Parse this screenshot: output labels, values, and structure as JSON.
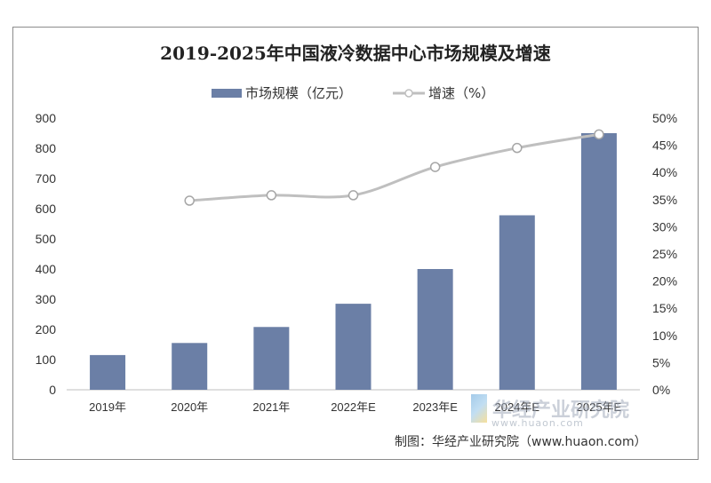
{
  "chart_data": {
    "type": "bar",
    "title": "2019-2025年中国液冷数据中心市场规模及增速",
    "categories": [
      "2019年",
      "2020年",
      "2021年",
      "2022年E",
      "2023年E",
      "2024年E",
      "2025年E"
    ],
    "series": [
      {
        "name": "市场规模（亿元）",
        "type": "bar",
        "axis": "left",
        "values": [
          115,
          155,
          208,
          285,
          400,
          578,
          850
        ]
      },
      {
        "name": "增速（%）",
        "type": "line",
        "axis": "right",
        "values": [
          null,
          34.8,
          35.8,
          35.8,
          41.0,
          44.5,
          47.0
        ]
      }
    ],
    "y_left": {
      "ylim": [
        0,
        900
      ],
      "ticks": [
        "0",
        "100",
        "200",
        "300",
        "400",
        "500",
        "600",
        "700",
        "800",
        "900"
      ]
    },
    "y_right": {
      "ylim": [
        0,
        50
      ],
      "ticks": [
        "0%",
        "5%",
        "10%",
        "15%",
        "20%",
        "25%",
        "30%",
        "35%",
        "40%",
        "45%",
        "50%"
      ]
    },
    "grid": false,
    "legend": "top-center",
    "colors": {
      "bar": "#6b7fa6",
      "line": "#bfbfbf",
      "marker_fill": "#ffffff"
    }
  },
  "credit": "制图：华经产业研究院（www.huaon.com）",
  "watermark": {
    "name": "华经产业研究院",
    "url": "www.huaon.com"
  }
}
